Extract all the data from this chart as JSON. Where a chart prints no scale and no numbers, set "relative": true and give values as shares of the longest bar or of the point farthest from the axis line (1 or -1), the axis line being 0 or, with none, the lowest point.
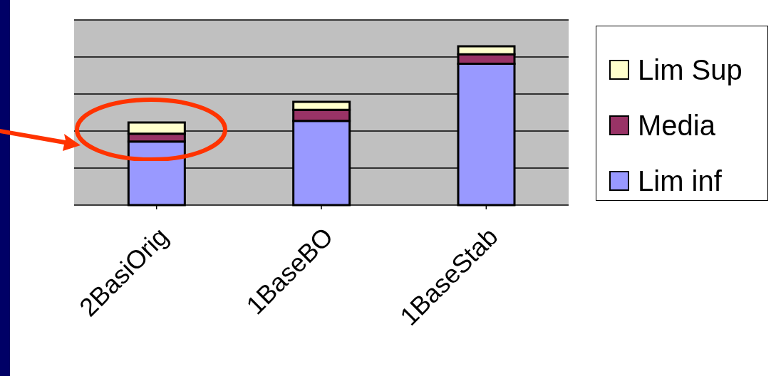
{
  "chart_data": {
    "type": "bar",
    "stacked": true,
    "relative": true,
    "categories": [
      "2BasiOrig",
      "1BaseBO",
      "1BaseStab"
    ],
    "series": [
      {
        "name": "Lim inf",
        "color": "#9999ff",
        "values": [
          0.4,
          0.53,
          0.89
        ]
      },
      {
        "name": "Media",
        "color": "#993366",
        "values": [
          0.05,
          0.07,
          0.06
        ]
      },
      {
        "name": "Lim Sup",
        "color": "#ffffcc",
        "values": [
          0.07,
          0.05,
          0.05
        ]
      }
    ],
    "grid": "y",
    "legend": "right"
  }
}
